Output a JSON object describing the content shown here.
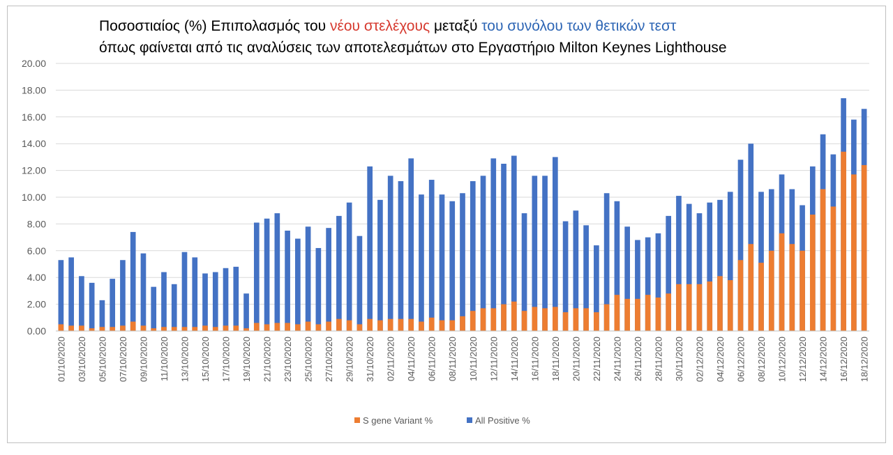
{
  "title": {
    "line1_prefix": "Ποσοστιαίος (%) Επιπολασμός του",
    "line1_red": "νέου στελέχους",
    "line1_mid": "μεταξύ",
    "line1_blue": "του συνόλου των θετικών τεστ",
    "line2": "όπως φαίνεται από τις αναλύσεις των αποτελεσμάτων στο Εργαστήριο Milton Keynes Lighthouse"
  },
  "colors": {
    "variant": "#ed7d31",
    "positive": "#4472c4",
    "grid": "#d9d9d9"
  },
  "chart_data": {
    "type": "bar",
    "stacked": "overlay",
    "ylim": [
      0,
      20
    ],
    "ytick_labels": [
      "0.00",
      "2.00",
      "4.00",
      "6.00",
      "8.00",
      "10.00",
      "12.00",
      "14.00",
      "16.00",
      "18.00",
      "20.00"
    ],
    "categories": [
      "01/10/2020",
      "02/10/2020",
      "03/10/2020",
      "04/10/2020",
      "05/10/2020",
      "06/10/2020",
      "07/10/2020",
      "08/10/2020",
      "09/10/2020",
      "10/10/2020",
      "11/10/2020",
      "12/10/2020",
      "13/10/2020",
      "14/10/2020",
      "15/10/2020",
      "16/10/2020",
      "17/10/2020",
      "18/10/2020",
      "19/10/2020",
      "20/10/2020",
      "21/10/2020",
      "22/10/2020",
      "23/10/2020",
      "24/10/2020",
      "25/10/2020",
      "26/10/2020",
      "27/10/2020",
      "28/10/2020",
      "29/10/2020",
      "30/10/2020",
      "31/10/2020",
      "01/11/2020",
      "02/11/2020",
      "03/11/2020",
      "04/11/2020",
      "05/11/2020",
      "06/11/2020",
      "07/11/2020",
      "08/11/2020",
      "09/11/2020",
      "10/11/2020",
      "11/11/2020",
      "12/11/2020",
      "13/11/2020",
      "14/11/2020",
      "15/11/2020",
      "16/11/2020",
      "17/11/2020",
      "18/11/2020",
      "19/11/2020",
      "20/11/2020",
      "21/11/2020",
      "22/11/2020",
      "23/11/2020",
      "24/11/2020",
      "25/11/2020",
      "26/11/2020",
      "27/11/2020",
      "28/11/2020",
      "29/11/2020",
      "30/11/2020",
      "01/12/2020",
      "02/12/2020",
      "03/12/2020",
      "04/12/2020",
      "05/12/2020",
      "06/12/2020",
      "07/12/2020",
      "08/12/2020",
      "09/12/2020",
      "10/12/2020",
      "11/12/2020",
      "12/12/2020",
      "13/12/2020",
      "14/12/2020",
      "15/12/2020",
      "16/12/2020",
      "17/12/2020",
      "18/12/2020"
    ],
    "xtick_labels": [
      "01/10/2020",
      "03/10/2020",
      "05/10/2020",
      "07/10/2020",
      "09/10/2020",
      "11/10/2020",
      "13/10/2020",
      "15/10/2020",
      "17/10/2020",
      "19/10/2020",
      "21/10/2020",
      "23/10/2020",
      "25/10/2020",
      "27/10/2020",
      "29/10/2020",
      "31/10/2020",
      "02/11/2020",
      "04/11/2020",
      "06/11/2020",
      "08/11/2020",
      "10/11/2020",
      "12/11/2020",
      "14/11/2020",
      "16/11/2020",
      "18/11/2020",
      "20/11/2020",
      "22/11/2020",
      "24/11/2020",
      "26/11/2020",
      "28/11/2020",
      "30/11/2020",
      "02/12/2020",
      "04/12/2020",
      "06/12/2020",
      "08/12/2020",
      "10/12/2020",
      "12/12/2020",
      "14/12/2020",
      "16/12/2020",
      "18/12/2020"
    ],
    "series": [
      {
        "name": "All Positive %",
        "values": [
          5.3,
          5.5,
          4.1,
          3.6,
          2.3,
          3.9,
          5.3,
          7.4,
          5.8,
          3.3,
          4.4,
          3.5,
          5.9,
          5.5,
          4.3,
          4.4,
          4.7,
          4.8,
          2.8,
          8.1,
          8.4,
          8.8,
          7.5,
          6.9,
          7.8,
          6.2,
          7.7,
          8.6,
          9.6,
          7.1,
          12.3,
          9.8,
          11.6,
          11.2,
          12.9,
          10.2,
          11.3,
          10.2,
          9.7,
          10.3,
          11.2,
          11.6,
          12.9,
          12.5,
          13.1,
          8.8,
          11.6,
          11.6,
          13.0,
          8.2,
          9.0,
          7.9,
          6.4,
          10.3,
          9.7,
          7.8,
          6.8,
          7.0,
          7.3,
          8.6,
          10.1,
          9.5,
          8.8,
          9.6,
          9.8,
          10.4,
          12.8,
          14.0,
          10.4,
          10.6,
          11.7,
          10.6,
          9.4,
          12.3,
          14.7,
          13.2,
          17.4,
          15.8,
          16.6
        ]
      },
      {
        "name": "S gene Variant %",
        "values": [
          0.5,
          0.4,
          0.4,
          0.2,
          0.3,
          0.3,
          0.4,
          0.7,
          0.4,
          0.2,
          0.3,
          0.3,
          0.3,
          0.3,
          0.4,
          0.3,
          0.4,
          0.4,
          0.2,
          0.6,
          0.5,
          0.6,
          0.6,
          0.5,
          0.7,
          0.5,
          0.7,
          0.9,
          0.8,
          0.5,
          0.9,
          0.8,
          0.9,
          0.9,
          0.9,
          0.7,
          1.0,
          0.8,
          0.8,
          1.1,
          1.5,
          1.7,
          1.7,
          2.0,
          2.2,
          1.5,
          1.8,
          1.7,
          1.8,
          1.4,
          1.7,
          1.7,
          1.4,
          2.0,
          2.7,
          2.4,
          2.4,
          2.7,
          2.5,
          2.8,
          3.5,
          3.5,
          3.5,
          3.7,
          4.1,
          3.8,
          5.3,
          6.5,
          5.1,
          6.0,
          7.3,
          6.5,
          6.0,
          8.7,
          10.6,
          9.3,
          13.4,
          11.7,
          12.4
        ]
      }
    ],
    "legend": [
      "S gene Variant %",
      "All Positive %"
    ],
    "legend_position": "bottom"
  }
}
